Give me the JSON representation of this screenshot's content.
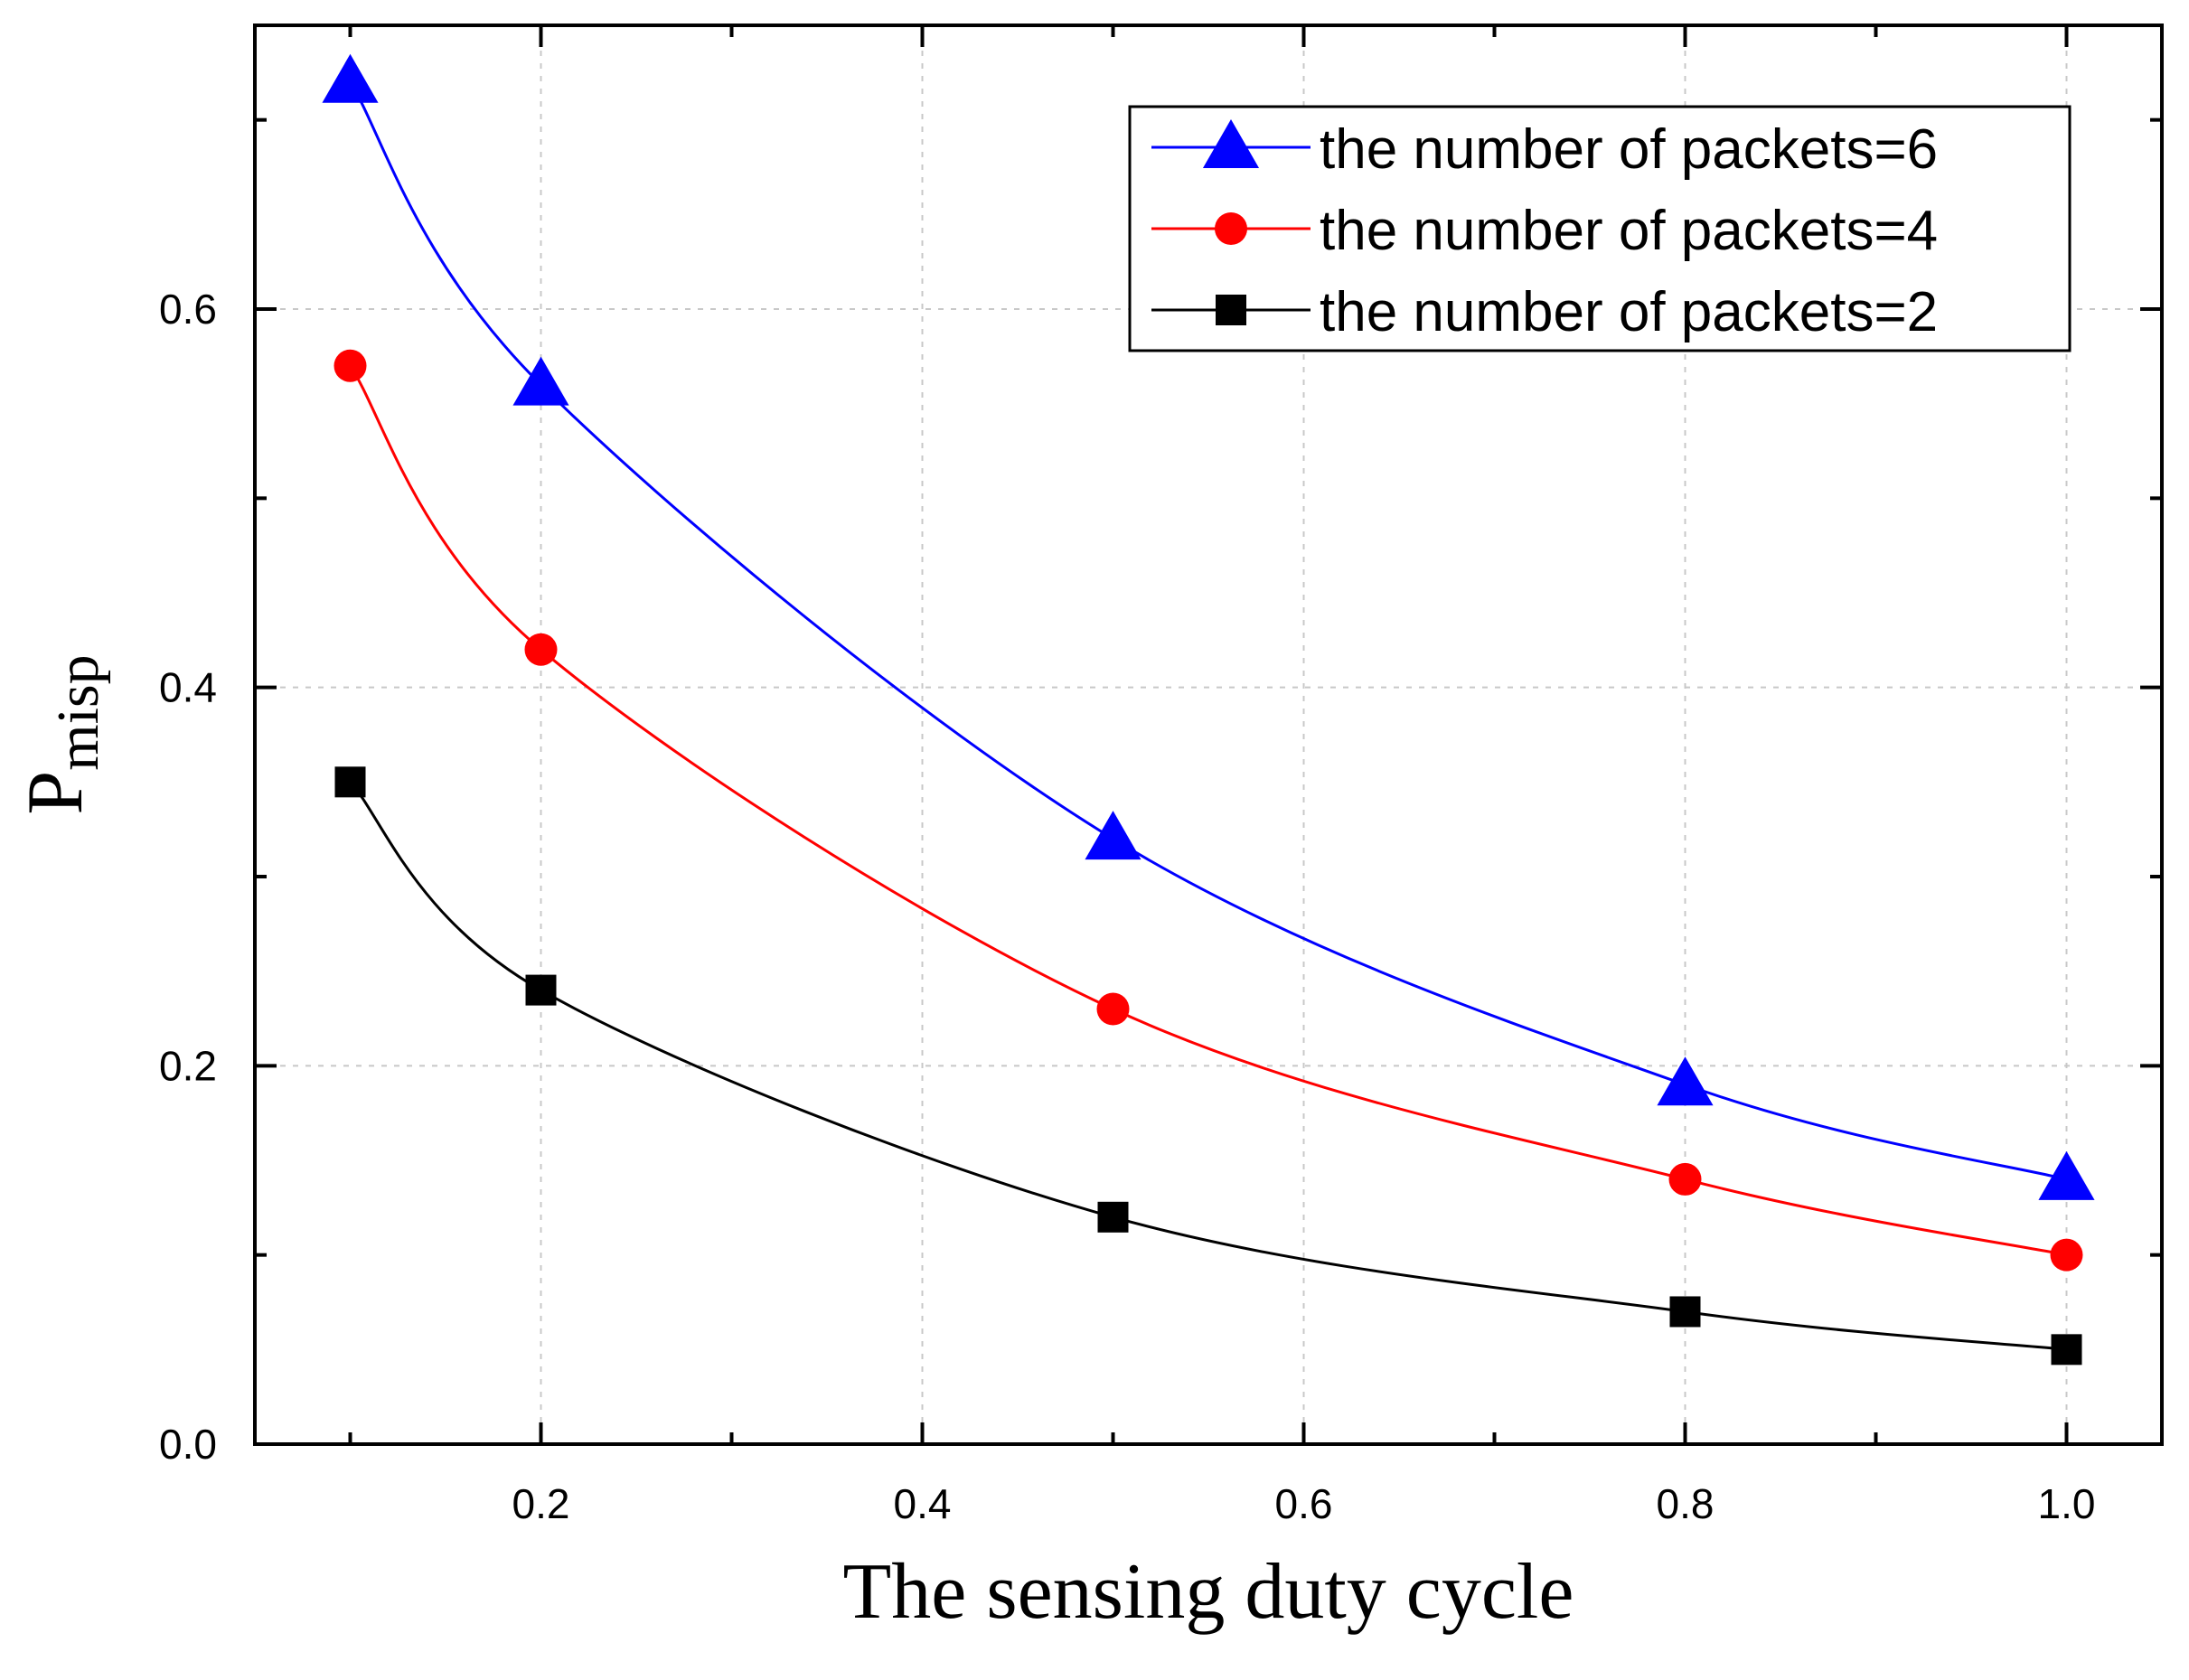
{
  "chart_data": {
    "type": "line",
    "title": "",
    "xlabel": "The sensing duty cycle",
    "ylabel_main": "P",
    "ylabel_sub": "misp",
    "xlim": [
      0.05,
      1.05
    ],
    "ylim": [
      0.0,
      0.75
    ],
    "x_ticks": [
      0.2,
      0.4,
      0.6,
      0.8,
      1.0
    ],
    "x_tick_labels": [
      "0.2",
      "0.4",
      "0.6",
      "0.8",
      "1.0"
    ],
    "y_ticks": [
      0.0,
      0.2,
      0.4,
      0.6
    ],
    "y_tick_labels": [
      "0.0",
      "0.2",
      "0.4",
      "0.6"
    ],
    "x_minor_ticks": [
      0.1,
      0.3,
      0.5,
      0.7,
      0.9
    ],
    "y_minor_ticks": [
      0.1,
      0.3,
      0.5,
      0.7
    ],
    "grid": true,
    "legend_position": "top-right",
    "x": [
      0.1,
      0.2,
      0.5,
      0.8,
      1.0
    ],
    "series": [
      {
        "name": "the number of packets=6",
        "marker": "triangle",
        "color": "#0000ff",
        "values": [
          0.72,
          0.56,
          0.32,
          0.19,
          0.14
        ]
      },
      {
        "name": "the number of packets=4",
        "marker": "circle",
        "color": "#ff0000",
        "values": [
          0.57,
          0.42,
          0.23,
          0.14,
          0.1
        ]
      },
      {
        "name": "the number of packets=2",
        "marker": "square",
        "color": "#000000",
        "values": [
          0.35,
          0.24,
          0.12,
          0.07,
          0.05
        ]
      }
    ]
  }
}
